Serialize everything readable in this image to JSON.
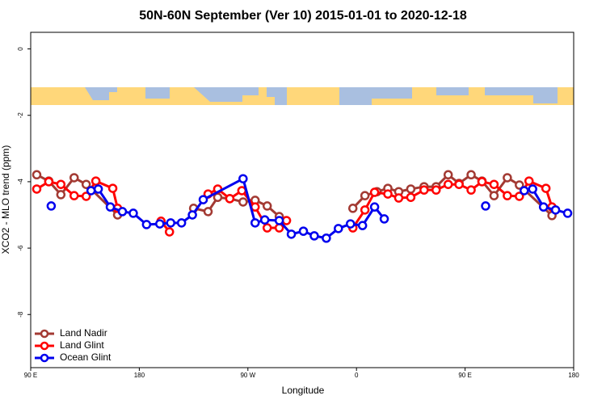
{
  "chart_data": {
    "type": "line",
    "title": "50N-60N September (Ver 10)   2015-01-01 to 2020-12-18",
    "x_label": "Longitude",
    "y_label": "XCO2 - MLO trend (ppm)",
    "xlim": [
      90,
      540
    ],
    "ylim": [
      -9.6,
      0.5
    ],
    "xticks": [
      {
        "value": 90,
        "label": "90 E"
      },
      {
        "value": 180,
        "label": "180"
      },
      {
        "value": 270,
        "label": "90 W"
      },
      {
        "value": 360,
        "label": "0"
      },
      {
        "value": 450,
        "label": "90 E"
      },
      {
        "value": 540,
        "label": "180"
      }
    ],
    "yticks": [
      0,
      -2,
      -4,
      -6,
      -8
    ],
    "legend": "bottom-left",
    "series": [
      {
        "name": "Land Nadir",
        "color": "#a33a33",
        "x": [
          95,
          105,
          115,
          126,
          136,
          162,
          null,
          225,
          237,
          245,
          255,
          266,
          276,
          286,
          296,
          null,
          357,
          367,
          377,
          386,
          395,
          405,
          416,
          426,
          436,
          445,
          455,
          464,
          474,
          485,
          495,
          522
        ],
        "values": [
          -3.79,
          -3.98,
          -4.39,
          -3.88,
          -4.08,
          -5.0,
          null,
          -4.8,
          -4.9,
          -4.47,
          -4.51,
          -4.61,
          -4.56,
          -4.73,
          -5.05,
          null,
          -4.8,
          -4.42,
          -4.3,
          -4.2,
          -4.3,
          -4.22,
          -4.15,
          -4.15,
          -3.79,
          -4.05,
          -3.79,
          -3.98,
          -4.42,
          -3.88,
          -4.1,
          -5.02
        ]
      },
      {
        "name": "Land Glint",
        "color": "#ff0000",
        "x": [
          95,
          105,
          115,
          126,
          136,
          144,
          158,
          162,
          null,
          198,
          205,
          null,
          237,
          245,
          255,
          265,
          276,
          286,
          296,
          302,
          null,
          357,
          367,
          375,
          386,
          395,
          405,
          416,
          426,
          436,
          445,
          455,
          464,
          474,
          485,
          495,
          503,
          517,
          522
        ],
        "values": [
          -4.22,
          -4.0,
          -4.08,
          -4.42,
          -4.44,
          -3.98,
          -4.2,
          -4.8,
          null,
          -5.19,
          -5.51,
          null,
          -4.37,
          -4.22,
          -4.51,
          -4.27,
          -4.76,
          -5.39,
          -5.39,
          -5.17,
          null,
          -5.39,
          -4.85,
          -4.32,
          -4.37,
          -4.49,
          -4.47,
          -4.25,
          -4.25,
          -4.08,
          -4.08,
          -4.25,
          -4.0,
          -4.08,
          -4.42,
          -4.44,
          -3.98,
          -4.2,
          -4.76
        ]
      },
      {
        "name": "Ocean Glint",
        "color": "#0000ee",
        "x": [
          107,
          null,
          140,
          146,
          156,
          166,
          175,
          186,
          197,
          206,
          215,
          224,
          233,
          266,
          276,
          284,
          296,
          306,
          316,
          325,
          335,
          345,
          355,
          365,
          375,
          383,
          null,
          467,
          null,
          499,
          506,
          515,
          525,
          535
        ],
        "values": [
          -4.73,
          null,
          -4.27,
          -4.22,
          -4.76,
          -4.9,
          -4.95,
          -5.29,
          -5.27,
          -5.24,
          -5.24,
          -5.0,
          -4.54,
          -3.91,
          -5.24,
          -5.15,
          -5.17,
          -5.58,
          -5.49,
          -5.63,
          -5.7,
          -5.41,
          -5.27,
          -5.32,
          -4.76,
          -5.12,
          null,
          -4.73,
          null,
          -4.27,
          -4.22,
          -4.76,
          -4.85,
          -4.95
        ]
      }
    ]
  }
}
